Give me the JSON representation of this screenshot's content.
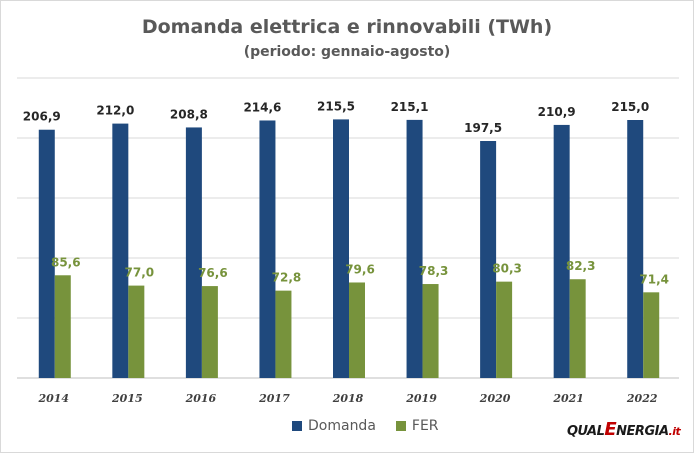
{
  "chart_data": {
    "type": "bar",
    "title": "Domanda elettrica e rinnovabili (TWh)",
    "subtitle": "(periodo: gennaio-agosto)",
    "categories": [
      "2014",
      "2015",
      "2016",
      "2017",
      "2018",
      "2019",
      "2020",
      "2021",
      "2022"
    ],
    "series": [
      {
        "name": "Domanda",
        "color": "#1f497d",
        "values": [
          206.9,
          212.0,
          208.8,
          214.6,
          215.5,
          215.1,
          197.5,
          210.9,
          215.0
        ],
        "labels": [
          "206,9",
          "212,0",
          "208,8",
          "214,6",
          "215,5",
          "215,1",
          "197,5",
          "210,9",
          "215,0"
        ]
      },
      {
        "name": "FER",
        "color": "#77933c",
        "values": [
          85.6,
          77.0,
          76.6,
          72.8,
          79.6,
          78.3,
          80.3,
          82.3,
          71.4
        ],
        "labels": [
          "85,6",
          "77,0",
          "76,6",
          "72,8",
          "79,6",
          "78,3",
          "80,3",
          "82,3",
          "71,4"
        ]
      }
    ],
    "ylim": [
      0,
      250
    ],
    "grid": true,
    "legend_position": "bottom"
  },
  "logo": {
    "part1": "QUAL",
    "part2": "E",
    "part3": "NERGIA",
    "part4": ".it"
  }
}
